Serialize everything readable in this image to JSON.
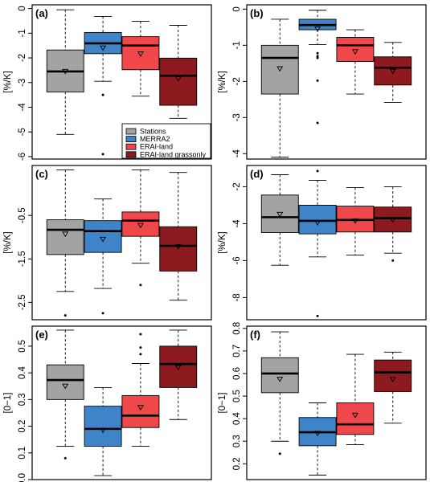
{
  "colors": {
    "Stations": "#a3a3a3",
    "MERRA2": "#3f84c9",
    "ERAI-land": "#f0484a",
    "ERAI-land grassonly": "#8c1a1f"
  },
  "chart_data": [
    {
      "type": "box",
      "panel_label": "(a)",
      "ylabel": "[%/K]",
      "ylim": [
        -6.1,
        0.15
      ],
      "yticks": [
        -6,
        -5,
        -4,
        -3,
        -2,
        -1,
        0
      ],
      "ytick_labels": [
        "-6",
        "-5",
        "-4",
        "-3",
        "-2",
        "-1",
        "0"
      ],
      "legend": {
        "position": "bottom-right",
        "entries": [
          "Stations",
          "MERRA2",
          "ERAI-land",
          "ERAI-land grassonly"
        ]
      },
      "series": [
        {
          "name": "Stations",
          "min": -5.1,
          "q1": -3.38,
          "median": -2.55,
          "q3": -1.68,
          "max": -0.05,
          "mean": -2.55,
          "outliers": []
        },
        {
          "name": "MERRA2",
          "min": -2.95,
          "q1": -1.83,
          "median": -1.41,
          "q3": -0.97,
          "max": -0.32,
          "mean": -1.6,
          "outliers": [
            -3.5,
            -5.9
          ]
        },
        {
          "name": "ERAI-land",
          "min": -3.55,
          "q1": -2.48,
          "median": -1.5,
          "q3": -1.14,
          "max": -0.52,
          "mean": -1.84,
          "outliers": []
        },
        {
          "name": "ERAI-land grassonly",
          "min": -4.45,
          "q1": -3.92,
          "median": -2.72,
          "q3": -2.01,
          "max": -0.68,
          "mean": -2.85,
          "outliers": []
        }
      ]
    },
    {
      "type": "box",
      "panel_label": "(b)",
      "ylabel": "[%/K]",
      "ylim": [
        -4.15,
        0.12
      ],
      "yticks": [
        -4,
        -3,
        -2,
        -1,
        0
      ],
      "ytick_labels": [
        "-4",
        "-3",
        "-2",
        "-1",
        "0"
      ],
      "series": [
        {
          "name": "Stations",
          "min": -4.1,
          "q1": -2.35,
          "median": -1.35,
          "q3": -1.0,
          "max": -0.28,
          "mean": -1.65,
          "outliers": []
        },
        {
          "name": "MERRA2",
          "min": -0.98,
          "q1": -0.57,
          "median": -0.44,
          "q3": -0.28,
          "max": -0.03,
          "mean": -0.55,
          "outliers": [
            -1.22,
            -1.3,
            -1.35,
            -1.98,
            -3.15
          ]
        },
        {
          "name": "ERAI-land",
          "min": -2.35,
          "q1": -1.45,
          "median": -1.0,
          "q3": -0.78,
          "max": -0.57,
          "mean": -1.18,
          "outliers": []
        },
        {
          "name": "ERAI-land grassonly",
          "min": -2.58,
          "q1": -2.1,
          "median": -1.62,
          "q3": -1.32,
          "max": -0.92,
          "mean": -1.72,
          "outliers": []
        }
      ]
    },
    {
      "type": "box",
      "panel_label": "(c)",
      "ylabel": "[%/K]",
      "ylim": [
        -2.9,
        0.65
      ],
      "yticks": [
        -2.5,
        -1.5,
        -0.5
      ],
      "ytick_labels": [
        "-2.5",
        "-1.5",
        "-0.5"
      ],
      "series": [
        {
          "name": "Stations",
          "min": -2.25,
          "q1": -1.4,
          "median": -0.83,
          "q3": -0.6,
          "max": 0.55,
          "mean": -0.93,
          "outliers": [
            -2.8
          ]
        },
        {
          "name": "MERRA2",
          "min": -2.18,
          "q1": -1.35,
          "median": -0.86,
          "q3": -0.62,
          "max": -0.12,
          "mean": -1.05,
          "outliers": [
            -2.75
          ]
        },
        {
          "name": "ERAI-land",
          "min": -1.6,
          "q1": -0.98,
          "median": -0.62,
          "q3": -0.42,
          "max": 0.55,
          "mean": -0.73,
          "outliers": [
            -2.1
          ]
        },
        {
          "name": "ERAI-land grassonly",
          "min": -2.45,
          "q1": -1.78,
          "median": -1.2,
          "q3": -0.76,
          "max": 0.49,
          "mean": -1.22,
          "outliers": []
        }
      ]
    },
    {
      "type": "box",
      "panel_label": "(d)",
      "ylabel": "[%/K]",
      "ylim": [
        -9.2,
        -0.85
      ],
      "yticks": [
        -8,
        -6,
        -4,
        -2
      ],
      "ytick_labels": [
        "-8",
        "-6",
        "-4",
        "-2"
      ],
      "series": [
        {
          "name": "Stations",
          "min": -6.25,
          "q1": -4.48,
          "median": -3.65,
          "q3": -2.45,
          "max": -1.35,
          "mean": -3.5,
          "outliers": []
        },
        {
          "name": "MERRA2",
          "min": -5.8,
          "q1": -4.55,
          "median": -3.85,
          "q3": -3.0,
          "max": -1.65,
          "mean": -3.95,
          "outliers": [
            -1.15,
            -9.0
          ]
        },
        {
          "name": "ERAI-land",
          "min": -5.7,
          "q1": -4.45,
          "median": -3.8,
          "q3": -3.05,
          "max": -2.05,
          "mean": -3.85,
          "outliers": []
        },
        {
          "name": "ERAI-land grassonly",
          "min": -5.6,
          "q1": -4.45,
          "median": -3.7,
          "q3": -3.1,
          "max": -2.0,
          "mean": -3.8,
          "outliers": [
            -6.0
          ]
        }
      ]
    },
    {
      "type": "box",
      "panel_label": "(e)",
      "ylabel": "[0−1]",
      "ylim": [
        0.0,
        0.575
      ],
      "yticks": [
        0.0,
        0.1,
        0.2,
        0.3,
        0.4,
        0.5
      ],
      "ytick_labels": [
        "0.0",
        "0.1",
        "0.2",
        "0.3",
        "0.4",
        "0.5"
      ],
      "series": [
        {
          "name": "Stations",
          "min": 0.125,
          "q1": 0.3,
          "median": 0.373,
          "q3": 0.43,
          "max": 0.56,
          "mean": 0.35,
          "outliers": [
            0.08
          ]
        },
        {
          "name": "MERRA2",
          "min": 0.015,
          "q1": 0.125,
          "median": 0.19,
          "q3": 0.275,
          "max": 0.345,
          "mean": 0.185,
          "outliers": []
        },
        {
          "name": "ERAI-land",
          "min": 0.125,
          "q1": 0.195,
          "median": 0.24,
          "q3": 0.315,
          "max": 0.435,
          "mean": 0.27,
          "outliers": [
            0.47,
            0.495,
            0.545
          ]
        },
        {
          "name": "ERAI-land grassonly",
          "min": 0.225,
          "q1": 0.345,
          "median": 0.433,
          "q3": 0.5,
          "max": 0.56,
          "mean": 0.42,
          "outliers": []
        }
      ]
    },
    {
      "type": "box",
      "panel_label": "(f)",
      "ylabel": "[0−1]",
      "ylim": [
        0.13,
        0.81
      ],
      "yticks": [
        0.2,
        0.3,
        0.4,
        0.5,
        0.6,
        0.7,
        0.8
      ],
      "ytick_labels": [
        "0.2",
        "0.3",
        "0.4",
        "0.5",
        "0.6",
        "0.7",
        "0.8"
      ],
      "series": [
        {
          "name": "Stations",
          "min": 0.3,
          "q1": 0.515,
          "median": 0.6,
          "q3": 0.67,
          "max": 0.785,
          "mean": 0.575,
          "outliers": [
            0.245
          ]
        },
        {
          "name": "MERRA2",
          "min": 0.15,
          "q1": 0.28,
          "median": 0.34,
          "q3": 0.405,
          "max": 0.47,
          "mean": 0.335,
          "outliers": []
        },
        {
          "name": "ERAI-land",
          "min": 0.285,
          "q1": 0.33,
          "median": 0.375,
          "q3": 0.47,
          "max": 0.685,
          "mean": 0.415,
          "outliers": []
        },
        {
          "name": "ERAI-land grassonly",
          "min": 0.38,
          "q1": 0.52,
          "median": 0.605,
          "q3": 0.66,
          "max": 0.695,
          "mean": 0.575,
          "outliers": []
        }
      ]
    }
  ]
}
